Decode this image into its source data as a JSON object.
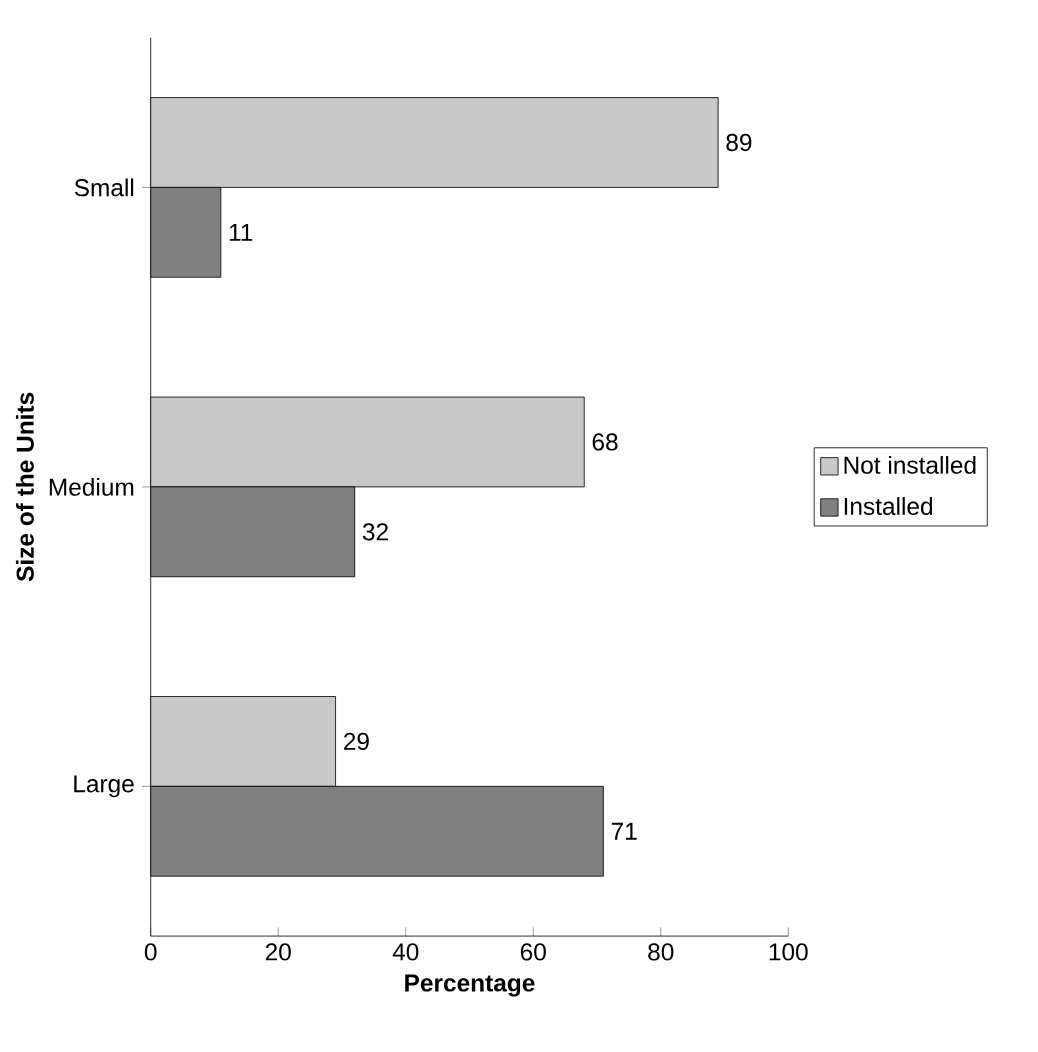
{
  "chart_data": {
    "type": "bar",
    "orientation": "horizontal",
    "xlabel": "Percentage",
    "ylabel": "Size of the Units",
    "categories": [
      "Small",
      "Medium",
      "Large"
    ],
    "series": [
      {
        "name": "Not installed",
        "color": "#c8c8c8",
        "values": [
          89,
          68,
          29
        ]
      },
      {
        "name": "Installed",
        "color": "#808080",
        "values": [
          11,
          32,
          71
        ]
      }
    ],
    "xlim": [
      0,
      100
    ],
    "xticks": [
      0,
      20,
      40,
      60,
      80,
      100
    ],
    "data_labels": true,
    "legend": "right",
    "grid": false
  }
}
